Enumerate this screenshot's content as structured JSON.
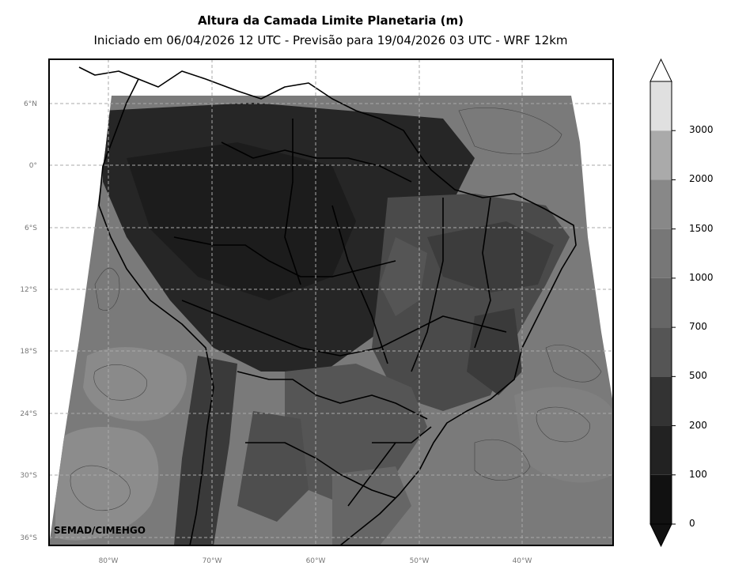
{
  "title": "Altura da Camada Limite Planetaria (m)",
  "subtitle": "Iniciado em 06/04/2026 12 UTC - Previsão para 19/04/2026 03 UTC - WRF 12km",
  "credit": "SEMAD/CIMEHGO",
  "lat_labels": [
    "6°N",
    "0°",
    "6°S",
    "12°S",
    "18°S",
    "24°S",
    "30°S",
    "36°S"
  ],
  "lon_labels": [
    "80°W",
    "70°W",
    "60°W",
    "50°W",
    "40°W"
  ],
  "colorbar": {
    "levels": [
      "0",
      "100",
      "200",
      "500",
      "700",
      "1000",
      "1500",
      "2000",
      "3000"
    ],
    "colors": [
      "#111111",
      "#222222",
      "#333333",
      "#555555",
      "#666666",
      "#777777",
      "#888888",
      "#aaaaaa",
      "#e0e0e0"
    ],
    "extend": "both"
  },
  "map": {
    "projection": "mercator",
    "lon_range": [
      -86,
      -31.5
    ],
    "lat_range": [
      -37,
      10
    ],
    "grid": true
  }
}
